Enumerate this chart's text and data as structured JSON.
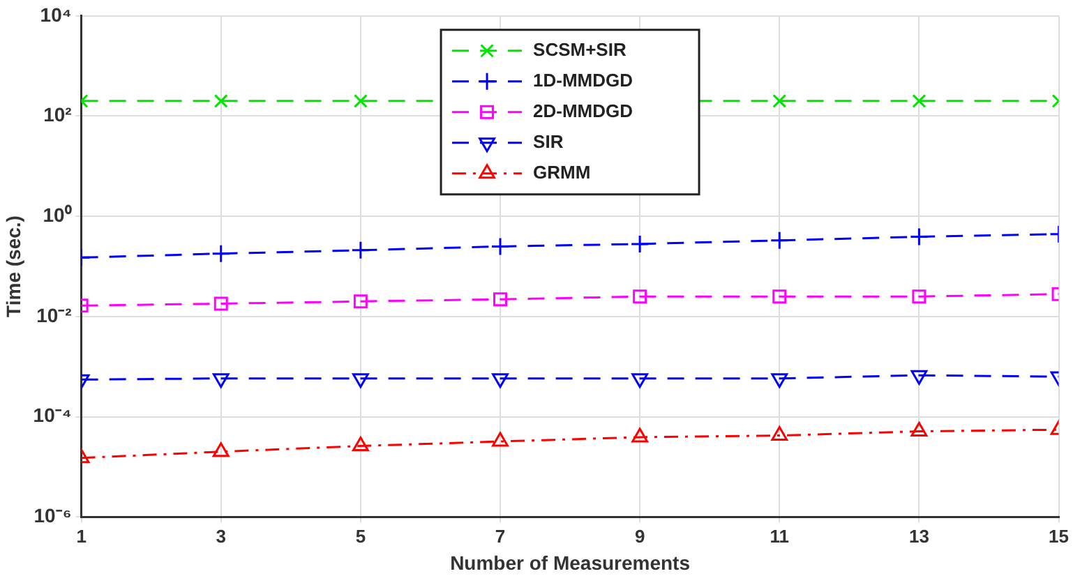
{
  "chart_data": {
    "type": "line",
    "xlabel": "Number of Measurements",
    "ylabel": "Time (sec.)",
    "x": [
      1,
      3,
      5,
      7,
      9,
      11,
      13,
      15
    ],
    "series": [
      {
        "name": "SCSM+SIR",
        "color": "#00e600",
        "marker": "x",
        "line_style": "dashed",
        "values": [
          200,
          200,
          200,
          null,
          null,
          200,
          200,
          200
        ]
      },
      {
        "name": "1D-MMDGD",
        "color": "#0000ff",
        "marker": "plus",
        "line_style": "dashed",
        "values": [
          0.15,
          0.18,
          0.21,
          0.25,
          0.28,
          0.33,
          0.39,
          0.44
        ]
      },
      {
        "name": "2D-MMDGD",
        "color": "#ff00ff",
        "marker": "square",
        "line_style": "dashed",
        "values": [
          0.0165,
          0.018,
          0.02,
          0.022,
          0.025,
          0.025,
          0.025,
          0.028
        ]
      },
      {
        "name": "SIR",
        "color": "#0000ff",
        "marker": "triangle_down",
        "line_style": "dashed",
        "values": [
          0.00055,
          0.00058,
          0.00058,
          0.00058,
          0.00058,
          0.00058,
          0.00067,
          0.00063
        ]
      },
      {
        "name": "GRMM",
        "color": "#ff0000",
        "marker": "triangle",
        "line_style": "dashdot",
        "values": [
          1.5e-05,
          2e-05,
          2.6e-05,
          3.2e-05,
          3.9e-05,
          4.2e-05,
          5.1e-05,
          5.5e-05
        ]
      }
    ],
    "log": "y",
    "xlim": [
      1,
      15
    ],
    "xticks": [
      1,
      3,
      5,
      7,
      9,
      11,
      13,
      15
    ],
    "ylim": [
      1e-06,
      10000
    ],
    "yticks": [
      {
        "value": 1e-06,
        "label": "10⁻⁶"
      },
      {
        "value": 0.0001,
        "label": "10⁻⁴"
      },
      {
        "value": 0.01,
        "label": "10⁻²"
      },
      {
        "value": 1,
        "label": "10⁰"
      },
      {
        "value": 100,
        "label": "10²"
      },
      {
        "value": 10000,
        "label": "10⁴"
      }
    ],
    "grid": true,
    "legend": "top"
  }
}
